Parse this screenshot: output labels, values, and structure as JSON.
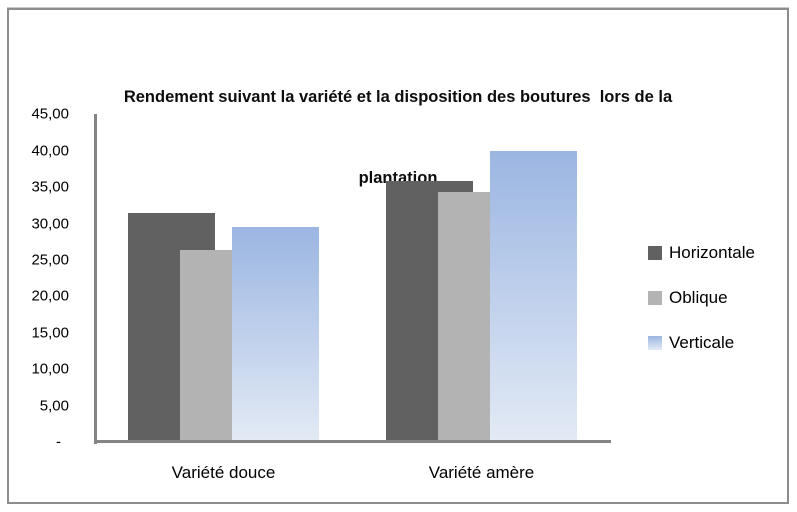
{
  "chart_data": {
    "type": "bar",
    "title": "Rendement suivant la variété et la disposition des boutures  lors de la plantation",
    "title_line1": "Rendement suivant la variété et la disposition des boutures  lors de la",
    "title_line2": "plantation",
    "categories": [
      "Variété douce",
      "Variété amère"
    ],
    "series": [
      {
        "name": "Horizontale",
        "values": [
          31.4,
          35.8
        ],
        "color": "#616161"
      },
      {
        "name": "Oblique",
        "values": [
          26.4,
          34.4
        ],
        "color": "#b3b3b3"
      },
      {
        "name": "Verticale",
        "values": [
          29.6,
          40.0
        ],
        "color_top": "#9bb6e2",
        "color_bottom": "#e3eaf5"
      }
    ],
    "y_axis": {
      "min": 0,
      "max": 45,
      "step": 5,
      "tick_labels": [
        "45,00",
        "40,00",
        "35,00",
        "30,00",
        "25,00",
        "20,00",
        "15,00",
        "10,00",
        "5,00",
        "-"
      ]
    },
    "xlabel": "",
    "ylabel": "",
    "grid": false,
    "legend_position": "right",
    "colors": {
      "axis_line": "#848484",
      "frame_border": "#8d8d8d",
      "text": "#000000"
    }
  }
}
